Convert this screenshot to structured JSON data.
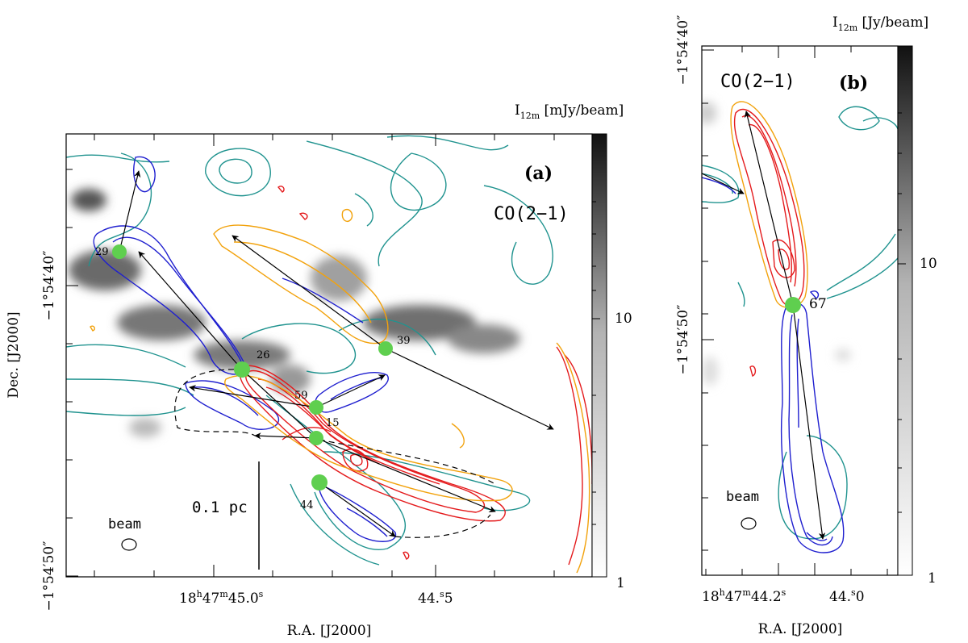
{
  "colors": {
    "cyan": "#20938f",
    "blue": "#1f1fcf",
    "red": "#e41a1c",
    "orange": "#f2a20c",
    "green": "#5fcf4f",
    "black": "#000000"
  },
  "panel_a": {
    "label": "(a)",
    "line": "CO(2−1)",
    "xlabel": "R.A. [J2000]",
    "ylabel": "Dec. [J2000]",
    "x_ticks": [
      {
        "ra": "18h47m45.0s",
        "base": "18",
        "h": "h",
        "m1": "47",
        "m": "m",
        "s1": "45.0",
        "s": "s"
      },
      {
        "ra": "44.5s",
        "base": "44.",
        "s": "s",
        "s1": "5"
      }
    ],
    "y_ticks": [
      {
        "dec": "−1°54′40″",
        "text": "−1°54′40″"
      },
      {
        "dec": "−1°54′50″",
        "text": "−1°54′50″"
      }
    ],
    "colorbar": {
      "title": "I",
      "sub": "12m",
      "unit": " [mJy/beam]",
      "ticks": [
        "10",
        "1"
      ]
    },
    "scalebar_label": "0.1 pc",
    "beam_label": "beam",
    "sources": [
      {
        "id": "29",
        "ra_offset_arcsec": -7.0,
        "dec_offset_arcsec": 1.2
      },
      {
        "id": "26",
        "ra_offset_arcsec": -3.3,
        "dec_offset_arcsec": -2.8
      },
      {
        "id": "39",
        "ra_offset_arcsec": 1.2,
        "dec_offset_arcsec": -2.2
      },
      {
        "id": "59",
        "ra_offset_arcsec": -0.8,
        "dec_offset_arcsec": -4.2
      },
      {
        "id": "15",
        "ra_offset_arcsec": -0.8,
        "dec_offset_arcsec": -5.3
      },
      {
        "id": "44",
        "ra_offset_arcsec": -0.8,
        "dec_offset_arcsec": -6.8
      }
    ]
  },
  "panel_b": {
    "label": "(b)",
    "line": "CO(2−1)",
    "xlabel": "R.A. [J2000]",
    "ylabel": "",
    "x_ticks": [
      {
        "ra": "18h47m44.2s",
        "base": "18",
        "h": "h",
        "m1": "47",
        "m": "m",
        "s1": "44.2",
        "s": "s"
      },
      {
        "ra": "44.0s",
        "base": "44.",
        "s": "s",
        "s1": "0"
      }
    ],
    "y_ticks": [
      {
        "dec": "−1°54′40″",
        "text": "−1°54′40″"
      },
      {
        "dec": "−1°54′50″",
        "text": "−1°54′50″"
      }
    ],
    "colorbar": {
      "title": "I",
      "sub": "12m",
      "unit": " [Jy/beam]",
      "ticks": [
        "10",
        "1"
      ]
    },
    "beam_label": "beam",
    "sources": [
      {
        "id": "67",
        "ra_offset_arcsec": 0.0,
        "dec_offset_arcsec": 0.0
      }
    ]
  },
  "chart_data": [
    {
      "type": "heatmap",
      "title": "",
      "panel": "(a)",
      "line": "CO(2−1)",
      "xlabel": "R.A. [J2000]",
      "ylabel": "Dec. [J2000]",
      "x_tick_labels": [
        "18h47m45.0s",
        "44.5s"
      ],
      "y_tick_labels": [
        "−1°54′40″",
        "−1°54′50″"
      ],
      "colorbar": {
        "label": "I12m [mJy/beam]",
        "scale": "log",
        "ticks": [
          1,
          10
        ],
        "range": [
          1,
          50
        ]
      },
      "scale_bar": "0.1 pc",
      "sources": [
        "29",
        "26",
        "39",
        "59",
        "15",
        "44"
      ]
    },
    {
      "type": "heatmap",
      "title": "",
      "panel": "(b)",
      "line": "CO(2−1)",
      "xlabel": "R.A. [J2000]",
      "ylabel": "",
      "x_tick_labels": [
        "18h47m44.2s",
        "44.0s"
      ],
      "y_tick_labels": [
        "−1°54′40″",
        "−1°54′50″"
      ],
      "colorbar": {
        "label": "I12m [Jy/beam]",
        "scale": "log",
        "ticks": [
          1,
          10
        ],
        "range": [
          1,
          50
        ]
      },
      "sources": [
        "67"
      ]
    }
  ]
}
